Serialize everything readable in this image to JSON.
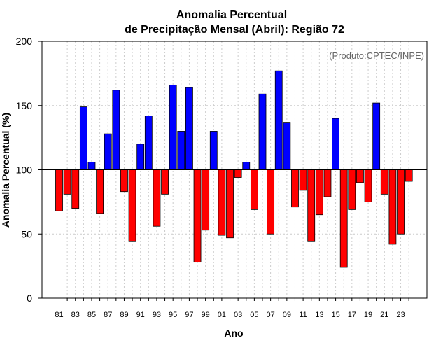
{
  "chart_data": {
    "type": "bar",
    "title_line1": "Anomalia Percentual",
    "title_line2": "de Precipitação Mensal (Abril): Região 72",
    "xlabel": "Ano",
    "ylabel": "Anomalia Percentual (%)",
    "annotation": "(Produto:CPTEC/INPE)",
    "ylim": [
      0,
      200
    ],
    "yticks": [
      0,
      50,
      100,
      150,
      200
    ],
    "baseline": 100,
    "x_tick_labels": [
      "81",
      "83",
      "85",
      "87",
      "89",
      "91",
      "93",
      "95",
      "97",
      "99",
      "01",
      "03",
      "05",
      "07",
      "09",
      "11",
      "13",
      "15",
      "17",
      "19",
      "21",
      "23"
    ],
    "years": [
      "81",
      "82",
      "83",
      "84",
      "85",
      "86",
      "87",
      "88",
      "89",
      "90",
      "91",
      "92",
      "93",
      "94",
      "95",
      "96",
      "97",
      "98",
      "99",
      "00",
      "01",
      "02",
      "03",
      "04",
      "05",
      "06",
      "07",
      "08",
      "09",
      "10",
      "11",
      "12",
      "13",
      "14",
      "15",
      "16",
      "17",
      "18",
      "19",
      "20",
      "21",
      "22",
      "23",
      "24"
    ],
    "values": [
      68,
      81,
      70,
      149,
      106,
      66,
      128,
      162,
      83,
      44,
      120,
      142,
      56,
      81,
      166,
      130,
      164,
      28,
      53,
      130,
      49,
      47,
      94,
      106,
      69,
      159,
      50,
      177,
      137,
      71,
      84,
      44,
      65,
      79,
      140,
      24,
      69,
      90,
      75,
      152,
      81,
      42,
      50,
      91
    ],
    "colors": {
      "above": "#0000ff",
      "below": "#ff0000",
      "edge": "#000000",
      "grid": "#cccccc"
    }
  }
}
